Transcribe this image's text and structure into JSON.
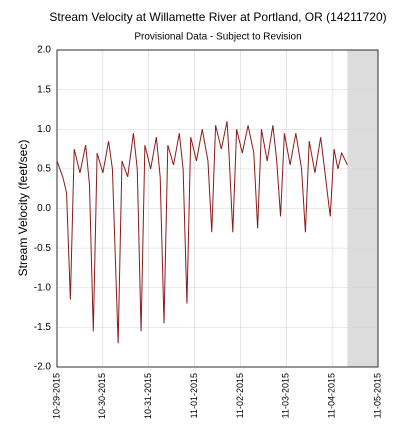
{
  "chart_data": {
    "type": "line",
    "title": "Stream Velocity at Willamette River at Portland, OR (14211720)",
    "subtitle": "Provisional Data - Subject to Revision",
    "y_label": "Stream Velocity (feet/sec)",
    "x": [
      "10-29-2015 00:00",
      "10-29-2015 03:00",
      "10-29-2015 05:00",
      "10-29-2015 07:00",
      "10-29-2015 09:00",
      "10-29-2015 12:00",
      "10-29-2015 15:00",
      "10-29-2015 17:00",
      "10-29-2015 19:00",
      "10-29-2015 21:00",
      "10-30-2015 00:00",
      "10-30-2015 03:00",
      "10-30-2015 05:00",
      "10-30-2015 08:00",
      "10-30-2015 10:00",
      "10-30-2015 13:00",
      "10-30-2015 16:00",
      "10-30-2015 18:00",
      "10-30-2015 20:00",
      "10-30-2015 22:00",
      "10-31-2015 01:00",
      "10-31-2015 04:00",
      "10-31-2015 06:00",
      "10-31-2015 08:00",
      "10-31-2015 10:00",
      "10-31-2015 13:00",
      "10-31-2015 16:00",
      "10-31-2015 18:00",
      "10-31-2015 20:00",
      "10-31-2015 22:00",
      "11-01-2015 01:00",
      "11-01-2015 04:00",
      "11-01-2015 07:00",
      "11-01-2015 09:00",
      "11-01-2015 11:00",
      "11-01-2015 14:00",
      "11-01-2015 17:00",
      "11-01-2015 18:00",
      "11-01-2015 20:00",
      "11-01-2015 22:00",
      "11-02-2015 01:00",
      "11-02-2015 04:00",
      "11-02-2015 07:00",
      "11-02-2015 09:00",
      "11-02-2015 11:00",
      "11-02-2015 14:00",
      "11-02-2015 17:00",
      "11-02-2015 19:00",
      "11-02-2015 21:00",
      "11-02-2015 23:00",
      "11-03-2015 02:00",
      "11-03-2015 05:00",
      "11-03-2015 08:00",
      "11-03-2015 10:00",
      "11-03-2015 12:00",
      "11-03-2015 15:00",
      "11-03-2015 18:00",
      "11-03-2015 20:00",
      "11-03-2015 23:00",
      "11-04-2015 01:00",
      "11-04-2015 03:00",
      "11-04-2015 05:00",
      "11-04-2015 08:00"
    ],
    "values": [
      0.6,
      0.4,
      0.2,
      -1.15,
      0.75,
      0.45,
      0.8,
      0.3,
      -1.55,
      0.7,
      0.45,
      0.85,
      0.5,
      -1.7,
      0.6,
      0.4,
      0.95,
      0.5,
      -1.55,
      0.8,
      0.5,
      0.9,
      0.4,
      -1.45,
      0.8,
      0.55,
      0.95,
      0.5,
      -1.2,
      0.9,
      0.6,
      1.0,
      0.6,
      -0.3,
      1.05,
      0.75,
      1.1,
      0.7,
      -0.3,
      1.0,
      0.7,
      1.05,
      0.7,
      -0.25,
      1.0,
      0.6,
      1.05,
      0.6,
      -0.1,
      0.95,
      0.55,
      0.95,
      0.5,
      -0.3,
      0.85,
      0.45,
      0.9,
      0.5,
      -0.1,
      0.75,
      0.5,
      0.7,
      0.55
    ],
    "color": "#8b1a1a",
    "shaded_region": [
      "11-04-2015 08:00",
      "11-05-2015 00:00"
    ],
    "shade_color": "#dcdcdc",
    "xlim": [
      "10-29-2015",
      "11-05-2015"
    ],
    "xticks": [
      "10-29-2015",
      "10-30-2015",
      "10-31-2015",
      "11-01-2015",
      "11-02-2015",
      "11-03-2015",
      "11-04-2015",
      "11-05-2015"
    ],
    "ylim": [
      -2,
      2
    ],
    "yticks": [
      {
        "value": -2,
        "label": "-2.0"
      },
      -1.5,
      {
        "value": -1,
        "label": "-1.0"
      },
      -0.5,
      {
        "value": 0,
        "label": "0.0"
      },
      0.5,
      {
        "value": 1,
        "label": "1.0"
      },
      1.5,
      {
        "value": 2,
        "label": "2.0"
      }
    ],
    "grid": true
  }
}
